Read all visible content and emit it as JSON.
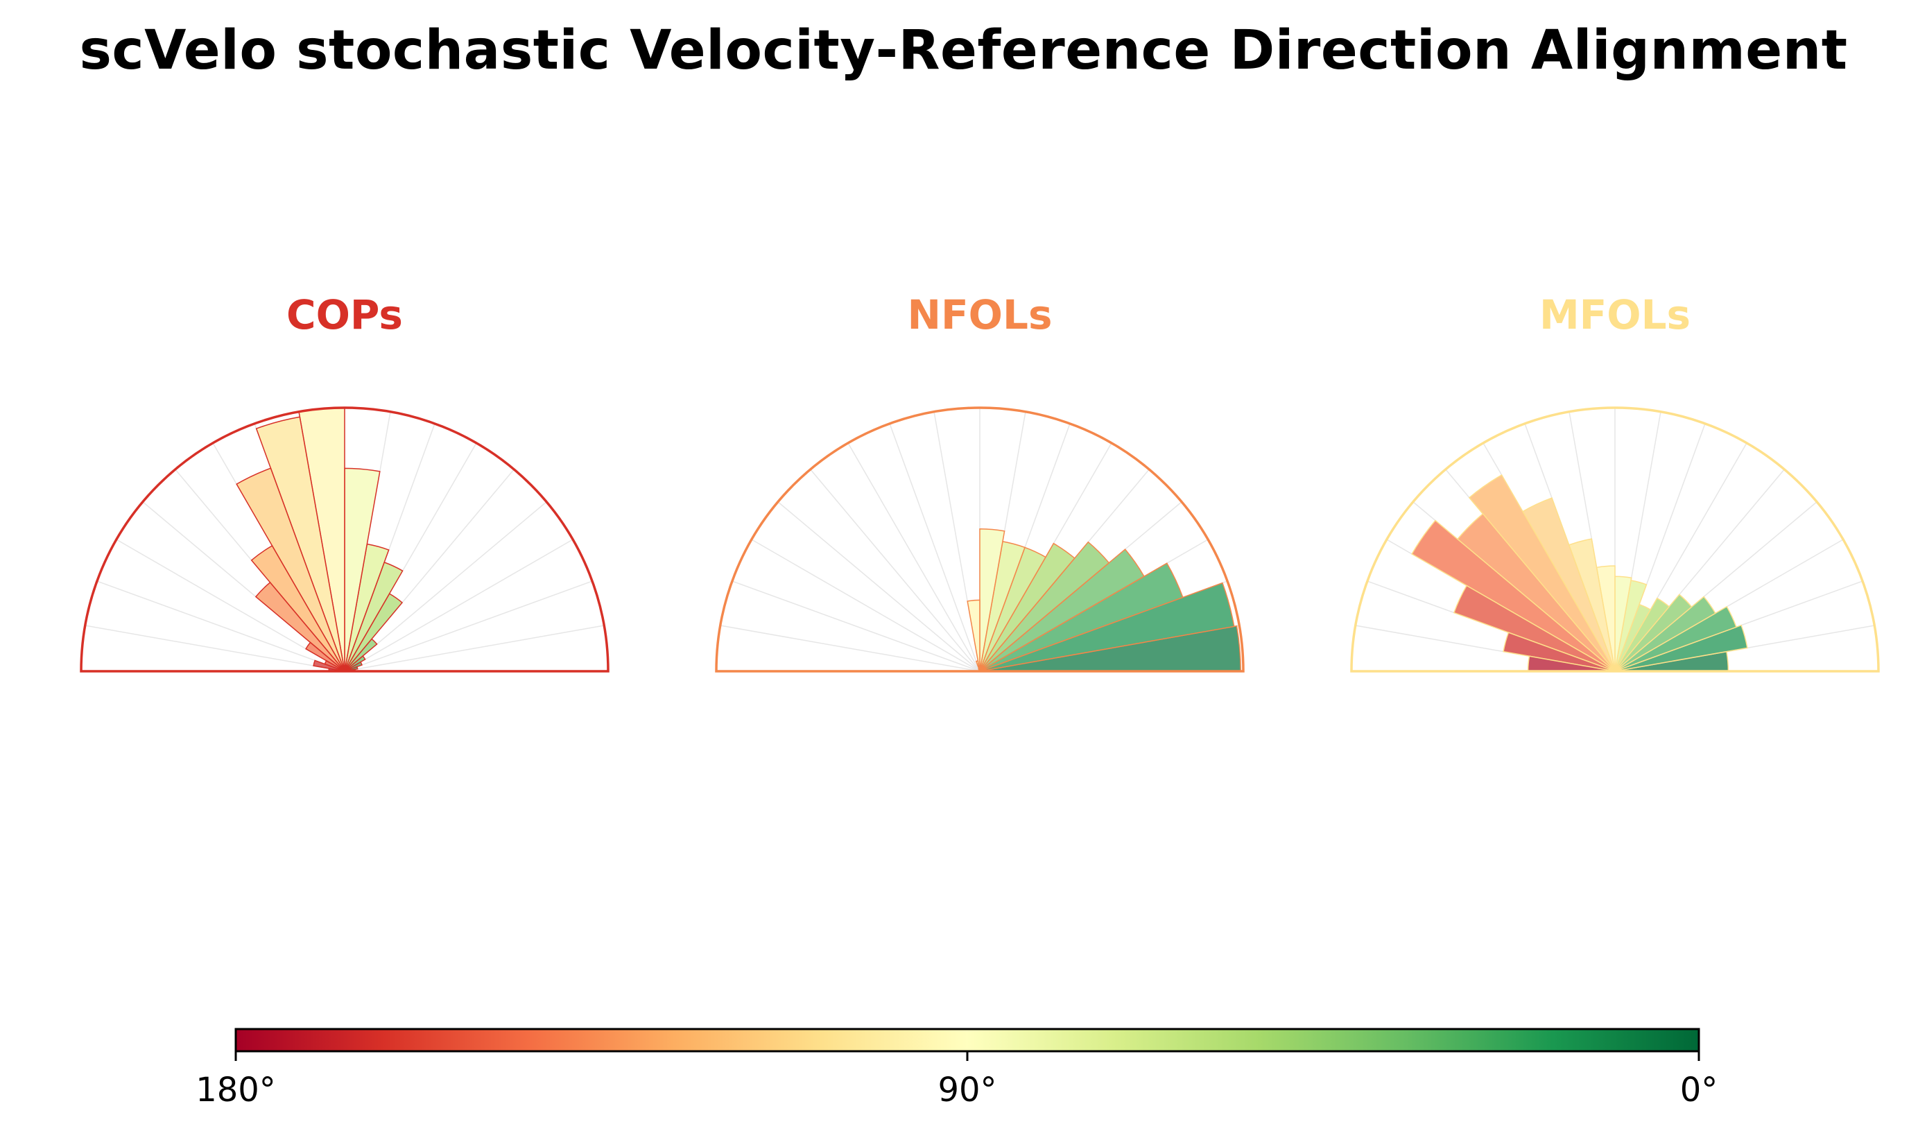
{
  "title": "scVelo stochastic Velocity-Reference Direction Alignment",
  "colorbar": {
    "tick_labels": [
      "180°",
      "90°",
      "0°"
    ],
    "tick_values_deg": [
      180,
      90,
      0
    ],
    "colormap": "RdYlGn",
    "stops": [
      "#a50026",
      "#d73027",
      "#f46d43",
      "#fdae61",
      "#fee08b",
      "#ffffbf",
      "#d9ef8b",
      "#a6d96a",
      "#66bd63",
      "#1a9850",
      "#006837"
    ]
  },
  "chart_data": [
    {
      "type": "polar-bar",
      "title": "COPs",
      "title_color": "#d73027",
      "angle_range_deg": [
        0,
        180
      ],
      "bin_width_deg": 10,
      "r_max": 1.0,
      "bin_centers_deg": [
        5,
        15,
        25,
        35,
        45,
        55,
        65,
        75,
        85,
        95,
        105,
        115,
        125,
        135,
        145,
        155,
        165,
        175
      ],
      "values": [
        0.04,
        0.05,
        0.07,
        0.09,
        0.16,
        0.34,
        0.44,
        0.49,
        0.77,
        1.0,
        0.98,
        0.82,
        0.55,
        0.44,
        0.17,
        0.08,
        0.12,
        0.06
      ]
    },
    {
      "type": "polar-bar",
      "title": "NFOLs",
      "title_color": "#f4874b",
      "angle_range_deg": [
        0,
        180
      ],
      "bin_width_deg": 10,
      "r_max": 1.0,
      "bin_centers_deg": [
        5,
        15,
        25,
        35,
        45,
        55,
        65,
        75,
        85,
        95,
        105,
        115,
        125,
        135,
        145,
        155,
        165,
        175
      ],
      "values": [
        0.99,
        0.98,
        0.82,
        0.72,
        0.64,
        0.56,
        0.5,
        0.5,
        0.54,
        0.27,
        0.04,
        0.01,
        0.0,
        0.0,
        0.0,
        0.0,
        0.0,
        0.0
      ]
    },
    {
      "type": "polar-bar",
      "title": "MFOLs",
      "title_color": "#fee08b",
      "angle_range_deg": [
        0,
        180
      ],
      "bin_width_deg": 10,
      "r_max": 1.0,
      "bin_centers_deg": [
        5,
        15,
        25,
        35,
        45,
        55,
        65,
        75,
        85,
        95,
        105,
        115,
        125,
        135,
        145,
        155,
        165,
        175
      ],
      "values": [
        0.43,
        0.51,
        0.49,
        0.44,
        0.38,
        0.32,
        0.27,
        0.35,
        0.36,
        0.4,
        0.51,
        0.7,
        0.86,
        0.78,
        0.89,
        0.65,
        0.43,
        0.33
      ]
    }
  ]
}
